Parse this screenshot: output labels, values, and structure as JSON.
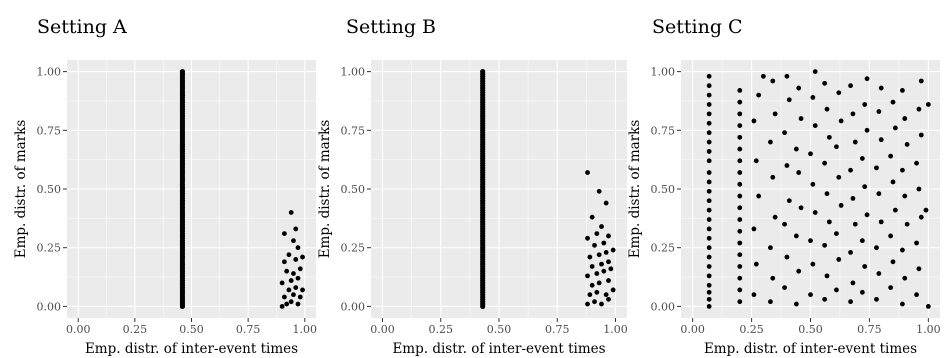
{
  "chart_data": [
    {
      "type": "scatter",
      "title": "Setting A",
      "xlabel": "Emp. distr. of inter-event times",
      "ylabel": "Emp. distr. of marks",
      "xlim": [
        0,
        1
      ],
      "ylim": [
        0,
        1
      ],
      "xticks": [
        "0.00",
        "0.25",
        "0.50",
        "0.75",
        "1.00"
      ],
      "yticks": [
        "0.00",
        "0.25",
        "0.50",
        "0.75",
        "1.00"
      ],
      "grid": true,
      "points": [
        [
          0.46,
          0.0
        ],
        [
          0.46,
          0.03
        ],
        [
          0.46,
          0.06
        ],
        [
          0.46,
          0.09
        ],
        [
          0.46,
          0.12
        ],
        [
          0.46,
          0.15
        ],
        [
          0.46,
          0.18
        ],
        [
          0.46,
          0.21
        ],
        [
          0.46,
          0.24
        ],
        [
          0.46,
          0.27
        ],
        [
          0.46,
          0.3
        ],
        [
          0.46,
          0.33
        ],
        [
          0.46,
          0.36
        ],
        [
          0.46,
          0.39
        ],
        [
          0.46,
          0.42
        ],
        [
          0.46,
          0.45
        ],
        [
          0.46,
          0.48
        ],
        [
          0.46,
          0.51
        ],
        [
          0.46,
          0.54
        ],
        [
          0.46,
          0.57
        ],
        [
          0.46,
          0.6
        ],
        [
          0.46,
          0.63
        ],
        [
          0.46,
          0.66
        ],
        [
          0.46,
          0.69
        ],
        [
          0.46,
          0.72
        ],
        [
          0.46,
          0.75
        ],
        [
          0.46,
          0.78
        ],
        [
          0.46,
          0.81
        ],
        [
          0.46,
          0.84
        ],
        [
          0.46,
          0.87
        ],
        [
          0.46,
          0.9
        ],
        [
          0.46,
          0.93
        ],
        [
          0.46,
          0.96
        ],
        [
          0.46,
          0.99
        ],
        [
          0.46,
          1.0
        ],
        [
          0.9,
          0.0
        ],
        [
          0.92,
          0.01
        ],
        [
          0.94,
          0.02
        ],
        [
          0.97,
          0.01
        ],
        [
          0.91,
          0.04
        ],
        [
          0.95,
          0.05
        ],
        [
          0.98,
          0.04
        ],
        [
          0.93,
          0.07
        ],
        [
          0.96,
          0.08
        ],
        [
          0.99,
          0.07
        ],
        [
          0.9,
          0.1
        ],
        [
          0.94,
          0.11
        ],
        [
          0.97,
          0.12
        ],
        [
          0.92,
          0.15
        ],
        [
          0.95,
          0.14
        ],
        [
          0.98,
          0.16
        ],
        [
          0.91,
          0.19
        ],
        [
          0.96,
          0.2
        ],
        [
          0.99,
          0.21
        ],
        [
          0.93,
          0.22
        ],
        [
          0.97,
          0.25
        ],
        [
          0.95,
          0.28
        ],
        [
          0.91,
          0.31
        ],
        [
          0.96,
          0.33
        ],
        [
          0.94,
          0.4
        ]
      ]
    },
    {
      "type": "scatter",
      "title": "Setting B",
      "xlabel": "Emp. distr. of inter-event times",
      "ylabel": "Emp. distr. of marks",
      "xlim": [
        0,
        1
      ],
      "ylim": [
        0,
        1
      ],
      "xticks": [
        "0.00",
        "0.25",
        "0.50",
        "0.75",
        "1.00"
      ],
      "yticks": [
        "0.00",
        "0.25",
        "0.50",
        "0.75",
        "1.00"
      ],
      "grid": true,
      "points": [
        [
          0.43,
          0.0
        ],
        [
          0.43,
          0.03
        ],
        [
          0.43,
          0.06
        ],
        [
          0.43,
          0.09
        ],
        [
          0.43,
          0.12
        ],
        [
          0.43,
          0.15
        ],
        [
          0.43,
          0.18
        ],
        [
          0.43,
          0.21
        ],
        [
          0.43,
          0.24
        ],
        [
          0.43,
          0.27
        ],
        [
          0.43,
          0.3
        ],
        [
          0.43,
          0.33
        ],
        [
          0.43,
          0.36
        ],
        [
          0.43,
          0.39
        ],
        [
          0.43,
          0.42
        ],
        [
          0.43,
          0.45
        ],
        [
          0.43,
          0.48
        ],
        [
          0.43,
          0.51
        ],
        [
          0.43,
          0.54
        ],
        [
          0.43,
          0.57
        ],
        [
          0.43,
          0.6
        ],
        [
          0.43,
          0.63
        ],
        [
          0.43,
          0.66
        ],
        [
          0.43,
          0.69
        ],
        [
          0.43,
          0.72
        ],
        [
          0.43,
          0.75
        ],
        [
          0.43,
          0.78
        ],
        [
          0.43,
          0.81
        ],
        [
          0.43,
          0.84
        ],
        [
          0.43,
          0.87
        ],
        [
          0.43,
          0.9
        ],
        [
          0.43,
          0.93
        ],
        [
          0.43,
          0.96
        ],
        [
          0.43,
          0.99
        ],
        [
          0.43,
          1.0
        ],
        [
          0.88,
          0.01
        ],
        [
          0.91,
          0.02
        ],
        [
          0.94,
          0.01
        ],
        [
          0.97,
          0.03
        ],
        [
          0.89,
          0.05
        ],
        [
          0.92,
          0.06
        ],
        [
          0.96,
          0.05
        ],
        [
          0.99,
          0.07
        ],
        [
          0.9,
          0.09
        ],
        [
          0.93,
          0.1
        ],
        [
          0.97,
          0.11
        ],
        [
          0.88,
          0.13
        ],
        [
          0.92,
          0.14
        ],
        [
          0.95,
          0.15
        ],
        [
          0.98,
          0.16
        ],
        [
          0.9,
          0.17
        ],
        [
          0.94,
          0.18
        ],
        [
          0.97,
          0.19
        ],
        [
          0.89,
          0.21
        ],
        [
          0.93,
          0.22
        ],
        [
          0.96,
          0.23
        ],
        [
          0.99,
          0.24
        ],
        [
          0.91,
          0.26
        ],
        [
          0.95,
          0.27
        ],
        [
          0.88,
          0.29
        ],
        [
          0.92,
          0.31
        ],
        [
          0.97,
          0.3
        ],
        [
          0.94,
          0.34
        ],
        [
          0.9,
          0.38
        ],
        [
          0.96,
          0.44
        ],
        [
          0.93,
          0.49
        ],
        [
          0.88,
          0.57
        ]
      ]
    },
    {
      "type": "scatter",
      "title": "Setting C",
      "xlabel": "Emp. distr. of inter-event times",
      "ylabel": "Emp. distr. of marks",
      "xlim": [
        0,
        1
      ],
      "ylim": [
        0,
        1
      ],
      "xticks": [
        "0.00",
        "0.25",
        "0.50",
        "0.75",
        "1.00"
      ],
      "yticks": [
        "0.00",
        "0.25",
        "0.50",
        "0.75",
        "1.00"
      ],
      "grid": true,
      "points": [
        [
          0.07,
          0.0
        ],
        [
          0.07,
          0.03
        ],
        [
          0.07,
          0.06
        ],
        [
          0.07,
          0.09
        ],
        [
          0.07,
          0.13
        ],
        [
          0.07,
          0.17
        ],
        [
          0.07,
          0.21
        ],
        [
          0.07,
          0.25
        ],
        [
          0.07,
          0.29
        ],
        [
          0.07,
          0.33
        ],
        [
          0.07,
          0.37
        ],
        [
          0.07,
          0.41
        ],
        [
          0.07,
          0.45
        ],
        [
          0.07,
          0.49
        ],
        [
          0.07,
          0.53
        ],
        [
          0.07,
          0.57
        ],
        [
          0.07,
          0.62
        ],
        [
          0.07,
          0.66
        ],
        [
          0.07,
          0.7
        ],
        [
          0.07,
          0.74
        ],
        [
          0.07,
          0.78
        ],
        [
          0.07,
          0.82
        ],
        [
          0.07,
          0.86
        ],
        [
          0.07,
          0.9
        ],
        [
          0.07,
          0.94
        ],
        [
          0.07,
          0.98
        ],
        [
          0.2,
          0.02
        ],
        [
          0.2,
          0.07
        ],
        [
          0.2,
          0.12
        ],
        [
          0.2,
          0.17
        ],
        [
          0.2,
          0.22
        ],
        [
          0.2,
          0.27
        ],
        [
          0.2,
          0.32
        ],
        [
          0.2,
          0.37
        ],
        [
          0.2,
          0.42
        ],
        [
          0.2,
          0.47
        ],
        [
          0.2,
          0.52
        ],
        [
          0.2,
          0.57
        ],
        [
          0.2,
          0.62
        ],
        [
          0.2,
          0.67
        ],
        [
          0.2,
          0.72
        ],
        [
          0.2,
          0.77
        ],
        [
          0.2,
          0.82
        ],
        [
          0.2,
          0.87
        ],
        [
          0.2,
          0.92
        ],
        [
          0.26,
          0.05
        ],
        [
          0.27,
          0.18
        ],
        [
          0.26,
          0.33
        ],
        [
          0.28,
          0.47
        ],
        [
          0.27,
          0.62
        ],
        [
          0.26,
          0.79
        ],
        [
          0.28,
          0.9
        ],
        [
          0.3,
          0.98
        ],
        [
          0.33,
          0.02
        ],
        [
          0.34,
          0.12
        ],
        [
          0.33,
          0.25
        ],
        [
          0.35,
          0.38
        ],
        [
          0.34,
          0.55
        ],
        [
          0.33,
          0.7
        ],
        [
          0.35,
          0.82
        ],
        [
          0.34,
          0.96
        ],
        [
          0.39,
          0.08
        ],
        [
          0.4,
          0.21
        ],
        [
          0.39,
          0.35
        ],
        [
          0.41,
          0.45
        ],
        [
          0.4,
          0.6
        ],
        [
          0.39,
          0.74
        ],
        [
          0.41,
          0.88
        ],
        [
          0.4,
          0.98
        ],
        [
          0.44,
          0.01
        ],
        [
          0.45,
          0.15
        ],
        [
          0.44,
          0.3
        ],
        [
          0.46,
          0.42
        ],
        [
          0.45,
          0.57
        ],
        [
          0.44,
          0.67
        ],
        [
          0.46,
          0.8
        ],
        [
          0.45,
          0.93
        ],
        [
          0.5,
          0.05
        ],
        [
          0.51,
          0.18
        ],
        [
          0.5,
          0.28
        ],
        [
          0.52,
          0.4
        ],
        [
          0.51,
          0.52
        ],
        [
          0.5,
          0.65
        ],
        [
          0.52,
          0.77
        ],
        [
          0.51,
          0.89
        ],
        [
          0.52,
          1.0
        ],
        [
          0.56,
          0.03
        ],
        [
          0.57,
          0.13
        ],
        [
          0.56,
          0.26
        ],
        [
          0.58,
          0.36
        ],
        [
          0.57,
          0.48
        ],
        [
          0.56,
          0.61
        ],
        [
          0.58,
          0.72
        ],
        [
          0.57,
          0.84
        ],
        [
          0.56,
          0.95
        ],
        [
          0.61,
          0.07
        ],
        [
          0.62,
          0.2
        ],
        [
          0.61,
          0.31
        ],
        [
          0.63,
          0.43
        ],
        [
          0.62,
          0.55
        ],
        [
          0.61,
          0.68
        ],
        [
          0.63,
          0.79
        ],
        [
          0.62,
          0.91
        ],
        [
          0.67,
          0.02
        ],
        [
          0.68,
          0.1
        ],
        [
          0.67,
          0.23
        ],
        [
          0.69,
          0.35
        ],
        [
          0.68,
          0.46
        ],
        [
          0.67,
          0.58
        ],
        [
          0.69,
          0.7
        ],
        [
          0.68,
          0.82
        ],
        [
          0.67,
          0.94
        ],
        [
          0.72,
          0.06
        ],
        [
          0.73,
          0.17
        ],
        [
          0.72,
          0.28
        ],
        [
          0.74,
          0.39
        ],
        [
          0.73,
          0.51
        ],
        [
          0.72,
          0.63
        ],
        [
          0.74,
          0.75
        ],
        [
          0.73,
          0.86
        ],
        [
          0.74,
          0.97
        ],
        [
          0.78,
          0.03
        ],
        [
          0.79,
          0.14
        ],
        [
          0.78,
          0.25
        ],
        [
          0.8,
          0.36
        ],
        [
          0.79,
          0.48
        ],
        [
          0.78,
          0.59
        ],
        [
          0.8,
          0.71
        ],
        [
          0.79,
          0.83
        ],
        [
          0.8,
          0.93
        ],
        [
          0.84,
          0.08
        ],
        [
          0.85,
          0.19
        ],
        [
          0.84,
          0.3
        ],
        [
          0.86,
          0.41
        ],
        [
          0.85,
          0.53
        ],
        [
          0.84,
          0.64
        ],
        [
          0.86,
          0.76
        ],
        [
          0.85,
          0.87
        ],
        [
          0.89,
          0.01
        ],
        [
          0.9,
          0.12
        ],
        [
          0.89,
          0.24
        ],
        [
          0.91,
          0.35
        ],
        [
          0.9,
          0.47
        ],
        [
          0.89,
          0.58
        ],
        [
          0.91,
          0.69
        ],
        [
          0.9,
          0.8
        ],
        [
          0.89,
          0.92
        ],
        [
          0.95,
          0.05
        ],
        [
          0.96,
          0.16
        ],
        [
          0.95,
          0.27
        ],
        [
          0.97,
          0.38
        ],
        [
          0.96,
          0.5
        ],
        [
          0.95,
          0.61
        ],
        [
          0.97,
          0.73
        ],
        [
          0.96,
          0.84
        ],
        [
          0.97,
          0.96
        ],
        [
          1.0,
          0.0
        ],
        [
          0.99,
          0.41
        ],
        [
          1.0,
          0.86
        ]
      ]
    }
  ]
}
